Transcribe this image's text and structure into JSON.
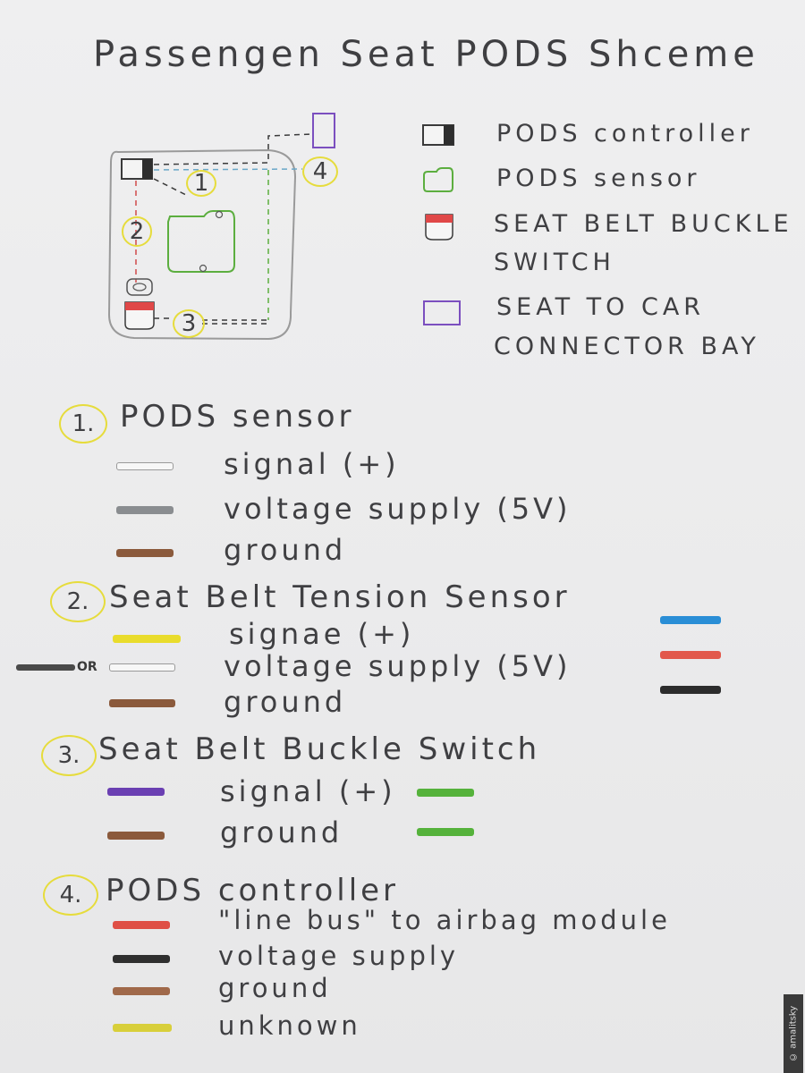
{
  "title": "Passengen Seat PODS Shceme",
  "diagram": {
    "markers": [
      "1",
      "2",
      "3",
      "4"
    ]
  },
  "legend": [
    {
      "label": "PODS controller",
      "icon": "controller-icon",
      "color": "#2f2f2f"
    },
    {
      "label": "PODS sensor",
      "icon": "sensor-icon",
      "color": "#5cae3f"
    },
    {
      "label_line1": "SEAT BELT BUCKLE",
      "label_line2": "SWITCH",
      "icon": "buckle-switch-icon",
      "color": "#e04848"
    },
    {
      "label_line1": "SEAT TO CAR",
      "label_line2": "CONNECTOR BAY",
      "icon": "connector-bay-icon",
      "color": "#7b4fbf"
    }
  ],
  "sections": [
    {
      "number": "1.",
      "title": "PODS sensor",
      "wires": [
        {
          "label": "signal (+)",
          "color": "#f7f7f7"
        },
        {
          "label": "voltage supply (5V)",
          "color": "#8a8d90"
        },
        {
          "label": "ground",
          "color": "#8b5a3c"
        }
      ]
    },
    {
      "number": "2.",
      "title": "Seat Belt Tension Sensor",
      "or_text": "OR",
      "wires": [
        {
          "label": "signae (+)",
          "color": "#e9dc2c",
          "alt_color": "#2a8ed6"
        },
        {
          "label": "voltage supply (5V)",
          "color": "#f7f7f7",
          "alt_left_color": "#4a4a4a",
          "alt_color": "#e2584b"
        },
        {
          "label": "ground",
          "color": "#8b5a3c",
          "alt_color": "#2c2c2c"
        }
      ]
    },
    {
      "number": "3.",
      "title": "Seat Belt Buckle Switch",
      "wires": [
        {
          "label": "signal (+)",
          "color": "#6a3fb2",
          "alt_color": "#55b23b"
        },
        {
          "label": "ground",
          "color": "#8b5a3c",
          "alt_color": "#55b23b"
        }
      ]
    },
    {
      "number": "4.",
      "title": "PODS controller",
      "wires": [
        {
          "label": "\"line bus\" to airbag module",
          "color": "#df4f45"
        },
        {
          "label": "voltage supply",
          "color": "#2f2f2f"
        },
        {
          "label": "ground",
          "color": "#a0694a"
        },
        {
          "label": "unknown",
          "color": "#d8cf3a"
        }
      ]
    }
  ],
  "credit": "© amalitsky"
}
